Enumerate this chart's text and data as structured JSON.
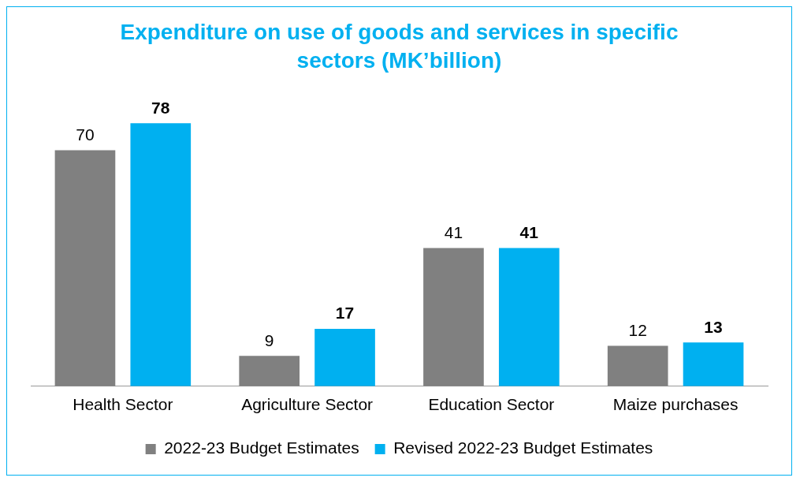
{
  "chart_data": {
    "type": "bar",
    "title": "Expenditure on use of goods and services in specific sectors (MK’billion)",
    "categories": [
      "Health Sector",
      "Agriculture Sector",
      "Education Sector",
      "Maize purchases"
    ],
    "series": [
      {
        "name": "2022-23 Budget Estimates",
        "color": "#808080",
        "values": [
          70,
          9,
          41,
          12
        ]
      },
      {
        "name": "Revised 2022-23 Budget Estimates",
        "color": "#00b0f0",
        "values": [
          78,
          17,
          41,
          13
        ]
      }
    ],
    "data_labels": true,
    "legend": "bottom",
    "grid": false
  }
}
